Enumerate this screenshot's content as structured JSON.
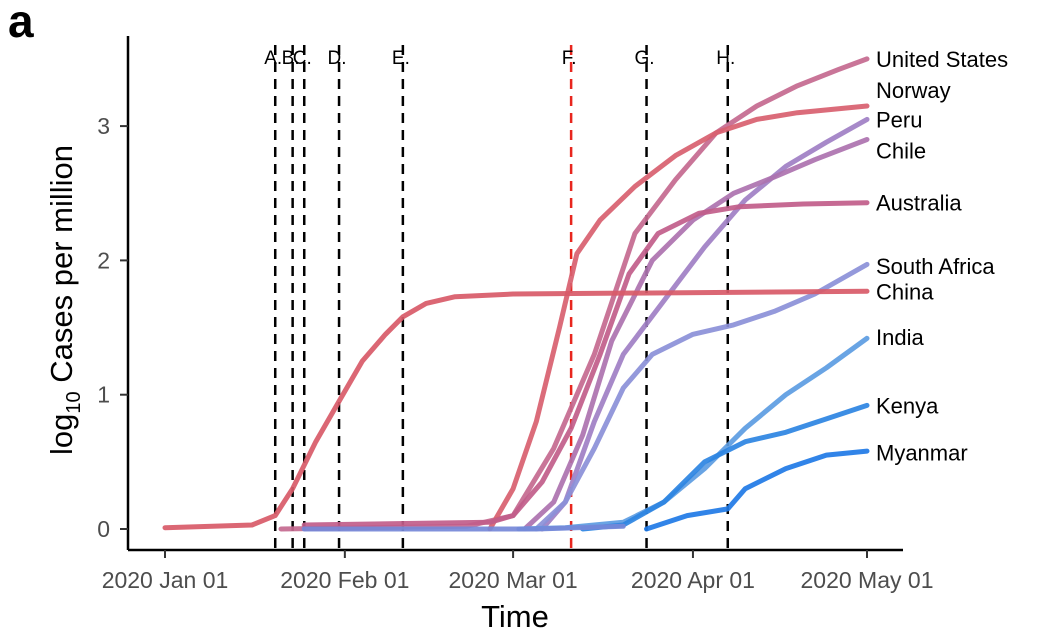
{
  "panel_label": "a",
  "chart_data": {
    "type": "line",
    "xlabel": "Time",
    "ylabel_main": "log",
    "ylabel_sub": "10",
    "ylabel_rest": " Cases  per  million",
    "xlim": [
      "2020-01-01",
      "2020-05-01"
    ],
    "ylim": [
      0,
      3.6
    ],
    "x_ticks": [
      {
        "date": "2020-01-01",
        "label": "2020 Jan 01"
      },
      {
        "date": "2020-02-01",
        "label": "2020 Feb 01"
      },
      {
        "date": "2020-03-01",
        "label": "2020 Mar 01"
      },
      {
        "date": "2020-04-01",
        "label": "2020 Apr 01"
      },
      {
        "date": "2020-05-01",
        "label": "2020 May 01"
      }
    ],
    "y_ticks": [
      {
        "value": 0,
        "label": "0"
      },
      {
        "value": 1,
        "label": "1"
      },
      {
        "value": 2,
        "label": "2"
      },
      {
        "value": 3,
        "label": "3"
      }
    ],
    "events": [
      {
        "label": "A.",
        "date": "2020-01-20",
        "color": "#000000"
      },
      {
        "label": "B.",
        "date": "2020-01-23",
        "color": "#000000"
      },
      {
        "label": "C.",
        "date": "2020-01-25",
        "color": "#000000"
      },
      {
        "label": "D.",
        "date": "2020-01-31",
        "color": "#000000"
      },
      {
        "label": "E.",
        "date": "2020-02-11",
        "color": "#000000"
      },
      {
        "label": "F.",
        "date": "2020-03-11",
        "color": "#e8261e"
      },
      {
        "label": "G.",
        "date": "2020-03-24",
        "color": "#000000"
      },
      {
        "label": "H.",
        "date": "2020-04-07",
        "color": "#000000"
      }
    ],
    "series": [
      {
        "name": "United States",
        "color": "#c4698f",
        "label_y": 3.5,
        "points": [
          [
            "2020-01-21",
            0.0
          ],
          [
            "2020-02-22",
            0.02
          ],
          [
            "2020-03-01",
            0.1
          ],
          [
            "2020-03-08",
            0.6
          ],
          [
            "2020-03-15",
            1.3
          ],
          [
            "2020-03-22",
            2.2
          ],
          [
            "2020-03-29",
            2.6
          ],
          [
            "2020-04-05",
            2.95
          ],
          [
            "2020-04-12",
            3.15
          ],
          [
            "2020-04-19",
            3.3
          ],
          [
            "2020-04-26",
            3.42
          ],
          [
            "2020-05-01",
            3.5
          ]
        ]
      },
      {
        "name": "Norway",
        "color": "#d8606f",
        "label_y": 3.27,
        "points": [
          [
            "2020-02-26",
            0.0
          ],
          [
            "2020-03-01",
            0.3
          ],
          [
            "2020-03-05",
            0.8
          ],
          [
            "2020-03-09",
            1.5
          ],
          [
            "2020-03-12",
            2.05
          ],
          [
            "2020-03-16",
            2.3
          ],
          [
            "2020-03-22",
            2.55
          ],
          [
            "2020-03-29",
            2.78
          ],
          [
            "2020-04-05",
            2.95
          ],
          [
            "2020-04-12",
            3.05
          ],
          [
            "2020-04-19",
            3.1
          ],
          [
            "2020-05-01",
            3.15
          ]
        ]
      },
      {
        "name": "Peru",
        "color": "#a07fc4",
        "label_y": 3.05,
        "points": [
          [
            "2020-03-06",
            0.0
          ],
          [
            "2020-03-10",
            0.2
          ],
          [
            "2020-03-15",
            0.8
          ],
          [
            "2020-03-20",
            1.3
          ],
          [
            "2020-03-27",
            1.7
          ],
          [
            "2020-04-03",
            2.1
          ],
          [
            "2020-04-10",
            2.45
          ],
          [
            "2020-04-17",
            2.7
          ],
          [
            "2020-04-24",
            2.88
          ],
          [
            "2020-05-01",
            3.05
          ]
        ]
      },
      {
        "name": "Chile",
        "color": "#ad72af",
        "label_y": 2.82,
        "points": [
          [
            "2020-03-03",
            0.0
          ],
          [
            "2020-03-08",
            0.2
          ],
          [
            "2020-03-13",
            0.7
          ],
          [
            "2020-03-18",
            1.4
          ],
          [
            "2020-03-25",
            2.0
          ],
          [
            "2020-04-01",
            2.3
          ],
          [
            "2020-04-08",
            2.5
          ],
          [
            "2020-04-15",
            2.62
          ],
          [
            "2020-04-22",
            2.75
          ],
          [
            "2020-05-01",
            2.9
          ]
        ]
      },
      {
        "name": "Australia",
        "color": "#c15d8a",
        "label_y": 2.43,
        "points": [
          [
            "2020-01-25",
            0.03
          ],
          [
            "2020-02-26",
            0.05
          ],
          [
            "2020-03-01",
            0.1
          ],
          [
            "2020-03-06",
            0.35
          ],
          [
            "2020-03-11",
            0.75
          ],
          [
            "2020-03-16",
            1.3
          ],
          [
            "2020-03-21",
            1.9
          ],
          [
            "2020-03-26",
            2.2
          ],
          [
            "2020-04-02",
            2.35
          ],
          [
            "2020-04-09",
            2.4
          ],
          [
            "2020-04-20",
            2.42
          ],
          [
            "2020-05-01",
            2.43
          ]
        ]
      },
      {
        "name": "South Africa",
        "color": "#8b90d8",
        "label_y": 1.96,
        "points": [
          [
            "2020-03-05",
            0.0
          ],
          [
            "2020-03-10",
            0.2
          ],
          [
            "2020-03-15",
            0.6
          ],
          [
            "2020-03-20",
            1.05
          ],
          [
            "2020-03-25",
            1.3
          ],
          [
            "2020-04-01",
            1.45
          ],
          [
            "2020-04-08",
            1.52
          ],
          [
            "2020-04-15",
            1.62
          ],
          [
            "2020-04-22",
            1.75
          ],
          [
            "2020-05-01",
            1.97
          ]
        ]
      },
      {
        "name": "China",
        "color": "#d85a68",
        "label_y": 1.77,
        "points": [
          [
            "2020-01-01",
            0.01
          ],
          [
            "2020-01-16",
            0.03
          ],
          [
            "2020-01-20",
            0.1
          ],
          [
            "2020-01-23",
            0.3
          ],
          [
            "2020-01-27",
            0.65
          ],
          [
            "2020-01-31",
            0.95
          ],
          [
            "2020-02-04",
            1.25
          ],
          [
            "2020-02-08",
            1.45
          ],
          [
            "2020-02-11",
            1.58
          ],
          [
            "2020-02-15",
            1.68
          ],
          [
            "2020-02-20",
            1.73
          ],
          [
            "2020-03-01",
            1.75
          ],
          [
            "2020-05-01",
            1.77
          ]
        ]
      },
      {
        "name": "India",
        "color": "#5c9ce2",
        "label_y": 1.43,
        "points": [
          [
            "2020-03-02",
            0.0
          ],
          [
            "2020-03-10",
            0.01
          ],
          [
            "2020-03-20",
            0.05
          ],
          [
            "2020-03-27",
            0.2
          ],
          [
            "2020-04-03",
            0.45
          ],
          [
            "2020-04-10",
            0.75
          ],
          [
            "2020-04-17",
            1.0
          ],
          [
            "2020-04-24",
            1.2
          ],
          [
            "2020-05-01",
            1.42
          ]
        ]
      },
      {
        "name": "Kenya",
        "color": "#2d84e2",
        "label_y": 0.92,
        "points": [
          [
            "2020-03-13",
            0.0
          ],
          [
            "2020-03-20",
            0.03
          ],
          [
            "2020-03-27",
            0.2
          ],
          [
            "2020-04-03",
            0.5
          ],
          [
            "2020-04-10",
            0.65
          ],
          [
            "2020-04-17",
            0.72
          ],
          [
            "2020-04-24",
            0.82
          ],
          [
            "2020-05-01",
            0.92
          ]
        ]
      },
      {
        "name": "Myanmar",
        "color": "#1f7ae6",
        "label_y": 0.57,
        "points": [
          [
            "2020-03-24",
            0.0
          ],
          [
            "2020-03-31",
            0.1
          ],
          [
            "2020-04-07",
            0.15
          ],
          [
            "2020-04-10",
            0.3
          ],
          [
            "2020-04-17",
            0.45
          ],
          [
            "2020-04-24",
            0.55
          ],
          [
            "2020-05-01",
            0.58
          ]
        ]
      },
      {
        "name": "",
        "color": "#7588d8",
        "label_y": null,
        "points": [
          [
            "2020-01-25",
            0.0
          ],
          [
            "2020-03-05",
            0.0
          ],
          [
            "2020-03-20",
            0.02
          ]
        ]
      }
    ]
  }
}
